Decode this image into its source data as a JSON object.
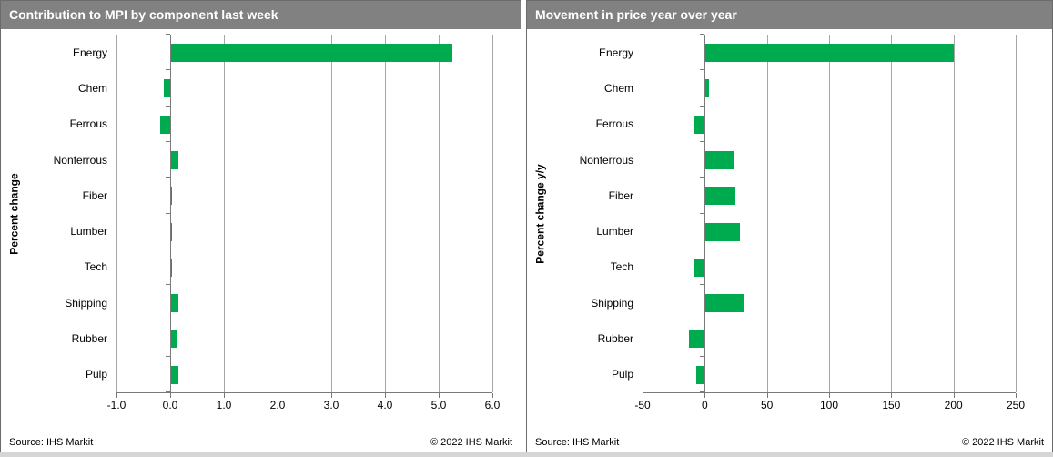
{
  "colors": {
    "bar_green": "#00ab4f",
    "header_gray": "#818181",
    "gridline_gray": "#a6a6a6",
    "axis_gray": "#7a7a7a",
    "page_strip_gray": "#d6d6d6",
    "title_text": "#ffffff"
  },
  "chart_data": [
    {
      "type": "bar",
      "orientation": "horizontal",
      "title": "Contribution to MPI by component last week",
      "ylabel": "Percent change",
      "xlabel": "",
      "categories": [
        "Energy",
        "Chem",
        "Ferrous",
        "Nonferrous",
        "Fiber",
        "Lumber",
        "Tech",
        "Shipping",
        "Rubber",
        "Pulp"
      ],
      "values": [
        5.25,
        -0.12,
        -0.18,
        0.15,
        0.04,
        0.04,
        0.03,
        0.16,
        0.12,
        0.15
      ],
      "xlim": [
        -1.0,
        6.0
      ],
      "xticks": [
        -1.0,
        0.0,
        1.0,
        2.0,
        3.0,
        4.0,
        5.0,
        6.0
      ],
      "xtick_labels": [
        "-1.0",
        "0.0",
        "1.0",
        "2.0",
        "3.0",
        "4.0",
        "5.0",
        "6.0"
      ],
      "grid": "vertical",
      "legend": "none",
      "source": "Source: IHS Markit",
      "copyright": "© 2022 IHS Markit"
    },
    {
      "type": "bar",
      "orientation": "horizontal",
      "title": "Movement in price year over year",
      "ylabel": "Percent change y/y",
      "xlabel": "",
      "categories": [
        "Energy",
        "Chem",
        "Ferrous",
        "Nonferrous",
        "Fiber",
        "Lumber",
        "Tech",
        "Shipping",
        "Rubber",
        "Pulp"
      ],
      "values": [
        200,
        3.5,
        -9,
        24,
        25,
        28,
        -8,
        32,
        -13,
        -7
      ],
      "xlim": [
        -50,
        250
      ],
      "xticks": [
        -50,
        0,
        50,
        100,
        150,
        200,
        250
      ],
      "xtick_labels": [
        "-50",
        "0",
        "50",
        "100",
        "150",
        "200",
        "250"
      ],
      "grid": "vertical",
      "legend": "none",
      "source": "Source: IHS Markit",
      "copyright": "© 2022 IHS Markit"
    }
  ]
}
